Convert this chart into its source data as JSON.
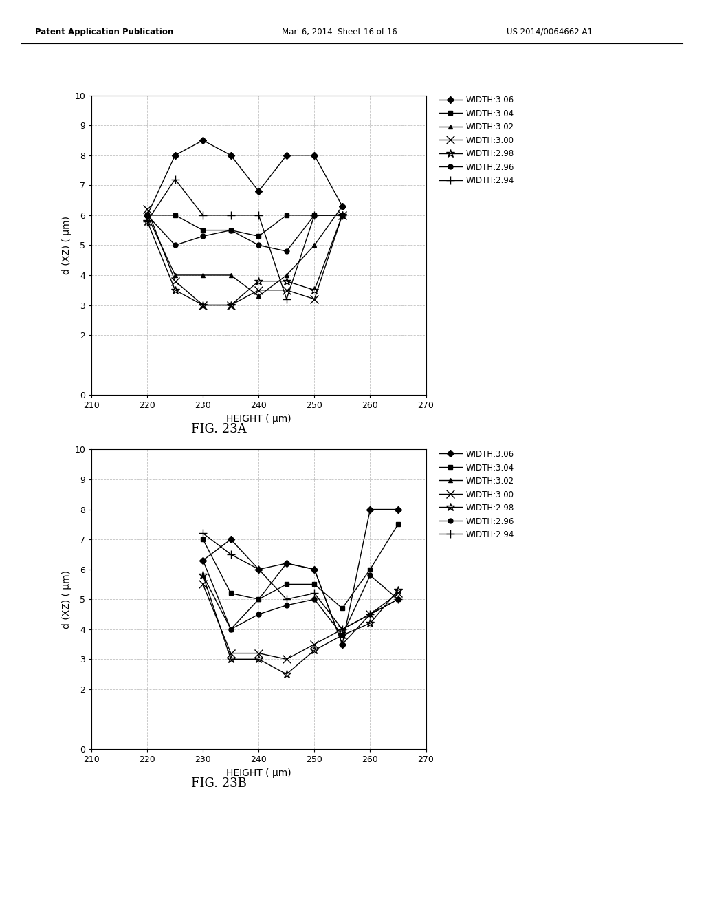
{
  "fig23a": {
    "series": [
      {
        "label": "WIDTH:3.06",
        "marker": "D",
        "x": [
          220,
          225,
          230,
          235,
          240,
          245,
          250,
          255
        ],
        "y": [
          6.0,
          8.0,
          8.5,
          8.0,
          6.8,
          8.0,
          8.0,
          6.3
        ]
      },
      {
        "label": "WIDTH:3.04",
        "marker": "s",
        "x": [
          220,
          225,
          230,
          235,
          240,
          245,
          250,
          255
        ],
        "y": [
          6.0,
          6.0,
          5.5,
          5.5,
          5.3,
          6.0,
          6.0,
          6.0
        ]
      },
      {
        "label": "WIDTH:3.02",
        "marker": "^",
        "x": [
          220,
          225,
          230,
          235,
          240,
          245,
          250,
          255
        ],
        "y": [
          6.0,
          4.0,
          4.0,
          4.0,
          3.3,
          4.0,
          5.0,
          6.3
        ]
      },
      {
        "label": "WIDTH:3.00",
        "marker": "x",
        "x": [
          220,
          225,
          230,
          235,
          240,
          245,
          250,
          255
        ],
        "y": [
          6.2,
          3.8,
          3.0,
          3.0,
          3.5,
          3.5,
          3.2,
          6.0
        ]
      },
      {
        "label": "WIDTH:2.98",
        "marker": "*",
        "x": [
          220,
          225,
          230,
          235,
          240,
          245,
          250,
          255
        ],
        "y": [
          5.8,
          3.5,
          3.0,
          3.0,
          3.8,
          3.8,
          3.5,
          6.0
        ]
      },
      {
        "label": "WIDTH:2.96",
        "marker": "o",
        "x": [
          220,
          225,
          230,
          235,
          240,
          245,
          250,
          255
        ],
        "y": [
          6.0,
          5.0,
          5.3,
          5.5,
          5.0,
          4.8,
          6.0,
          6.0
        ]
      },
      {
        "label": "WIDTH:2.94",
        "marker": "+",
        "x": [
          220,
          225,
          230,
          235,
          240,
          245,
          250,
          255
        ],
        "y": [
          5.8,
          7.2,
          6.0,
          6.0,
          6.0,
          3.2,
          6.0,
          6.0
        ]
      }
    ],
    "xlabel": "HEIGHT ( μm)",
    "ylabel": "d (XZ) ( μm)",
    "xlim": [
      210,
      270
    ],
    "ylim": [
      0,
      10
    ],
    "xticks": [
      210,
      220,
      230,
      240,
      250,
      260,
      270
    ],
    "yticks": [
      0,
      2,
      3,
      4,
      5,
      6,
      7,
      8,
      9,
      10
    ],
    "caption": "FIG. 23A"
  },
  "fig23b": {
    "series": [
      {
        "label": "WIDTH:3.06",
        "marker": "D",
        "x": [
          230,
          235,
          240,
          245,
          250,
          255,
          260,
          265
        ],
        "y": [
          6.3,
          7.0,
          6.0,
          6.2,
          6.0,
          3.5,
          8.0,
          8.0
        ]
      },
      {
        "label": "WIDTH:3.04",
        "marker": "s",
        "x": [
          230,
          235,
          240,
          245,
          250,
          255,
          260,
          265
        ],
        "y": [
          7.0,
          5.2,
          5.0,
          5.5,
          5.5,
          4.7,
          6.0,
          7.5
        ]
      },
      {
        "label": "WIDTH:3.02",
        "marker": "^",
        "x": [
          230,
          235,
          240,
          245,
          250,
          255,
          260,
          265
        ],
        "y": [
          5.8,
          4.0,
          5.0,
          6.2,
          6.0,
          3.5,
          4.5,
          5.0
        ]
      },
      {
        "label": "WIDTH:3.00",
        "marker": "x",
        "x": [
          230,
          235,
          240,
          245,
          250,
          255,
          260,
          265
        ],
        "y": [
          5.5,
          3.2,
          3.2,
          3.0,
          3.5,
          4.0,
          4.5,
          5.2
        ]
      },
      {
        "label": "WIDTH:2.98",
        "marker": "*",
        "x": [
          230,
          235,
          240,
          245,
          250,
          255,
          260,
          265
        ],
        "y": [
          5.8,
          3.0,
          3.0,
          2.5,
          3.3,
          3.8,
          4.2,
          5.3
        ]
      },
      {
        "label": "WIDTH:2.96",
        "marker": "o",
        "x": [
          230,
          235,
          240,
          245,
          250,
          255,
          260,
          265
        ],
        "y": [
          6.3,
          4.0,
          4.5,
          4.8,
          5.0,
          3.8,
          5.8,
          5.0
        ]
      },
      {
        "label": "WIDTH:2.94",
        "marker": "+",
        "x": [
          230,
          235,
          240,
          245,
          250,
          255,
          260,
          265
        ],
        "y": [
          7.2,
          6.5,
          6.0,
          5.0,
          5.2,
          4.0,
          4.5,
          5.0
        ]
      }
    ],
    "xlabel": "HEIGHT ( μm)",
    "ylabel": "d (XZ) ( μm)",
    "xlim": [
      210,
      270
    ],
    "ylim": [
      0,
      10
    ],
    "xticks": [
      210,
      220,
      230,
      240,
      250,
      260,
      270
    ],
    "yticks": [
      0,
      2,
      3,
      4,
      5,
      6,
      7,
      8,
      9,
      10
    ],
    "caption": "FIG. 23B"
  },
  "header_left": "Patent Application Publication",
  "header_mid": "Mar. 6, 2014  Sheet 16 of 16",
  "header_right": "US 2014/0064662 A1",
  "background_color": "#ffffff",
  "line_color": "#000000",
  "grid_color": "#bbbbbb",
  "marker_size": 5,
  "line_width": 1.0
}
